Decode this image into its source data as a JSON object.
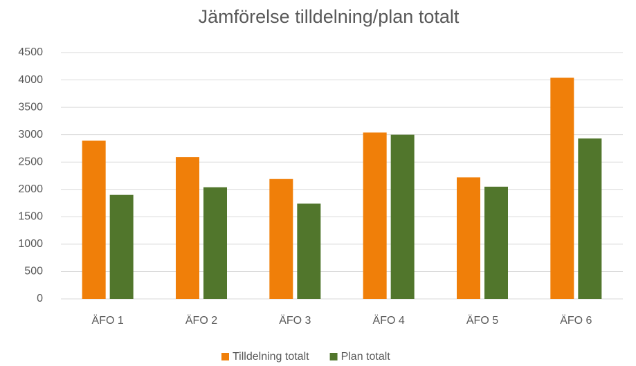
{
  "chart_data": {
    "type": "bar",
    "title": "Jämförelse tilldelning/plan totalt",
    "categories": [
      "ÄFO 1",
      "ÄFO 2",
      "ÄFO 3",
      "ÄFO 4",
      "ÄFO 5",
      "ÄFO 6"
    ],
    "series": [
      {
        "name": "Tilldelning totalt",
        "color": "#f07f09",
        "values": [
          2890,
          2590,
          2190,
          3040,
          2220,
          4040
        ]
      },
      {
        "name": "Plan totalt",
        "color": "#51762c",
        "values": [
          1900,
          2040,
          1740,
          3000,
          2050,
          2930
        ]
      }
    ],
    "ylim": [
      0,
      4500
    ],
    "yticks": [
      0,
      500,
      1000,
      1500,
      2000,
      2500,
      3000,
      3500,
      4000,
      4500
    ],
    "grid": true,
    "legend": "bottom"
  }
}
